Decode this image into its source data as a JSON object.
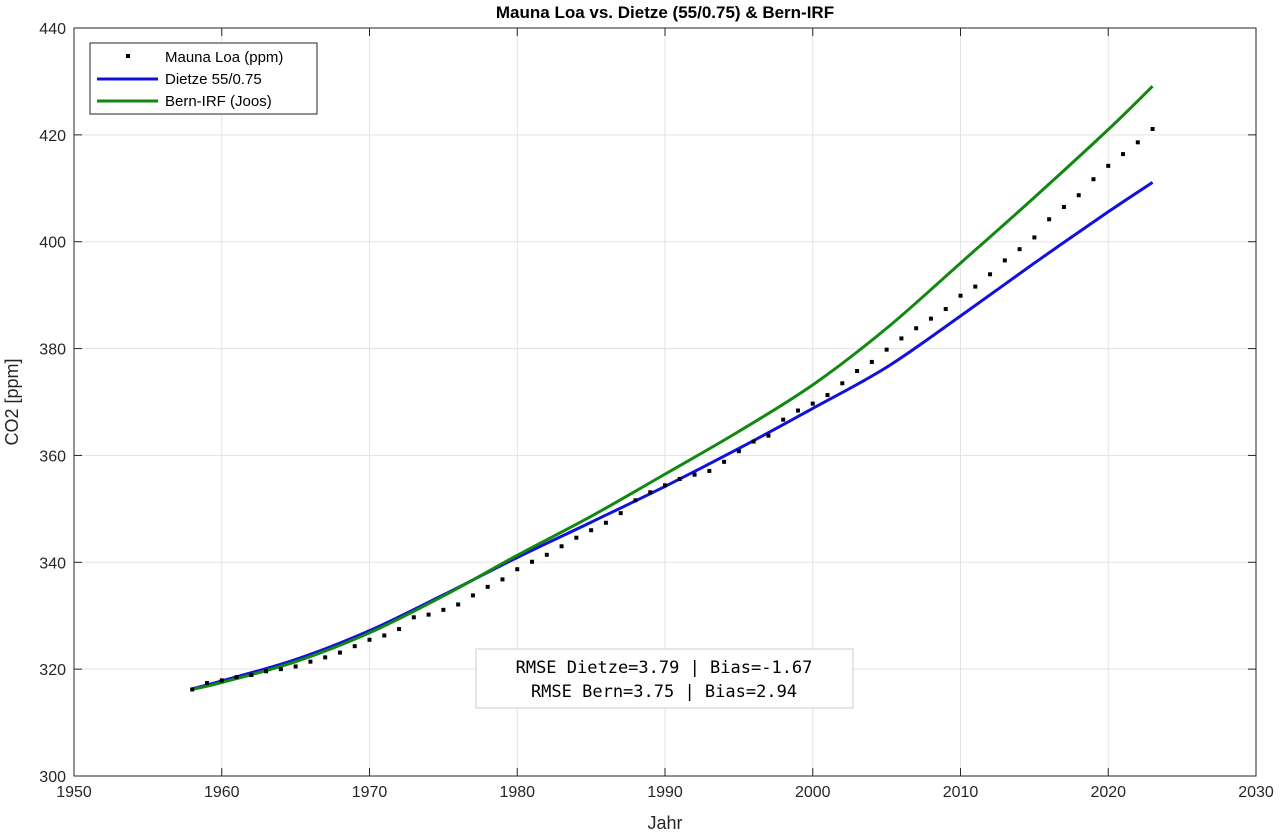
{
  "chart_data": {
    "type": "line",
    "title": "Mauna Loa vs. Dietze (55/0.75) & Bern-IRF",
    "xlabel": "Jahr",
    "ylabel": "CO2 [ppm]",
    "xlim": [
      1950,
      2030
    ],
    "ylim": [
      300,
      440
    ],
    "xticks": [
      1950,
      1960,
      1970,
      1980,
      1990,
      2000,
      2010,
      2020,
      2030
    ],
    "yticks": [
      300,
      320,
      340,
      360,
      380,
      400,
      420,
      440
    ],
    "grid": true,
    "legend_position": "top-left",
    "series": [
      {
        "name": "Mauna Loa (ppm)",
        "style": "markers",
        "color": "#000000",
        "x": [
          1958,
          1959,
          1960,
          1961,
          1962,
          1963,
          1964,
          1965,
          1966,
          1967,
          1968,
          1969,
          1970,
          1971,
          1972,
          1973,
          1974,
          1975,
          1976,
          1977,
          1978,
          1979,
          1980,
          1981,
          1982,
          1983,
          1984,
          1985,
          1986,
          1987,
          1988,
          1989,
          1990,
          1991,
          1992,
          1993,
          1994,
          1995,
          1996,
          1997,
          1998,
          1999,
          2000,
          2001,
          2002,
          2003,
          2004,
          2005,
          2006,
          2007,
          2008,
          2009,
          2010,
          2011,
          2012,
          2013,
          2014,
          2015,
          2016,
          2017,
          2018,
          2019,
          2020,
          2021,
          2022,
          2023
        ],
        "values": [
          316.2,
          317.4,
          317.9,
          318.5,
          318.9,
          319.6,
          320.0,
          320.5,
          321.4,
          322.2,
          323.1,
          324.3,
          325.5,
          326.3,
          327.5,
          329.7,
          330.2,
          331.1,
          332.1,
          333.8,
          335.4,
          336.8,
          338.7,
          340.1,
          341.4,
          343.0,
          344.6,
          346.0,
          347.4,
          349.2,
          351.6,
          353.1,
          354.4,
          355.6,
          356.4,
          357.1,
          358.8,
          360.8,
          362.6,
          363.7,
          366.7,
          368.4,
          369.7,
          371.3,
          373.5,
          375.8,
          377.5,
          379.8,
          381.9,
          383.8,
          385.6,
          387.4,
          389.9,
          391.6,
          393.9,
          396.5,
          398.6,
          400.8,
          404.2,
          406.5,
          408.7,
          411.7,
          414.2,
          416.4,
          418.6,
          421.1
        ]
      },
      {
        "name": "Dietze 55/0.75",
        "style": "line",
        "color": "#1111dd",
        "x": [
          1958,
          1960,
          1965,
          1970,
          1975,
          1980,
          1985,
          1990,
          1995,
          2000,
          2005,
          2010,
          2015,
          2020,
          2023
        ],
        "values": [
          316.3,
          317.8,
          321.8,
          327.2,
          333.9,
          340.9,
          347.5,
          354.2,
          361.3,
          368.8,
          376.5,
          386.1,
          396.0,
          405.6,
          411.1
        ]
      },
      {
        "name": "Bern-IRF (Joos)",
        "style": "line",
        "color": "#118811",
        "x": [
          1958,
          1960,
          1965,
          1970,
          1975,
          1980,
          1985,
          1990,
          1995,
          2000,
          2005,
          2010,
          2015,
          2020,
          2023
        ],
        "values": [
          316.2,
          317.5,
          321.4,
          326.8,
          333.7,
          341.3,
          348.6,
          356.5,
          364.5,
          373.2,
          383.8,
          396.0,
          408.3,
          421.0,
          429.1
        ]
      }
    ],
    "annotation": {
      "line1": "RMSE Dietze=3.79 | Bias=-1.67",
      "line2": "RMSE Bern=3.75 | Bias=2.94"
    }
  }
}
